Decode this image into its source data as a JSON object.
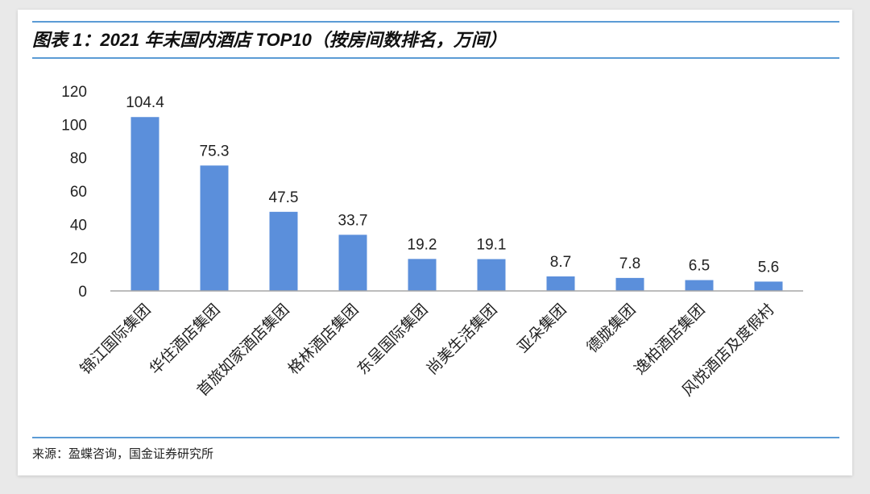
{
  "header": {
    "title": "图表 1：2021 年末国内酒店 TOP10（按房间数排名，万间）"
  },
  "footer": {
    "source": "来源：盈蝶咨询，国金证券研究所"
  },
  "colors": {
    "bar": "#5b8fdb",
    "rule": "#5b9bd5"
  },
  "chart_data": {
    "type": "bar",
    "title": "图表 1：2021 年末国内酒店 TOP10（按房间数排名，万间）",
    "xlabel": "",
    "ylabel": "",
    "categories": [
      "锦江国际集团",
      "华住酒店集团",
      "首旅如家酒店集团",
      "格林酒店集团",
      "东呈国际集团",
      "尚美生活集团",
      "亚朵集团",
      "德胧集团",
      "逸柏酒店集团",
      "风悦酒店及度假村"
    ],
    "values": [
      104.4,
      75.3,
      47.5,
      33.7,
      19.2,
      19.1,
      8.7,
      7.8,
      6.5,
      5.6
    ],
    "data_labels": [
      "104.4",
      "75.3",
      "47.5",
      "33.7",
      "19.2",
      "19.1",
      "8.7",
      "7.8",
      "6.5",
      "5.6"
    ],
    "ylim": [
      0,
      120
    ],
    "yticks": [
      "0",
      "20",
      "40",
      "60",
      "80",
      "100",
      "120"
    ],
    "grid": false,
    "legend": "none"
  }
}
